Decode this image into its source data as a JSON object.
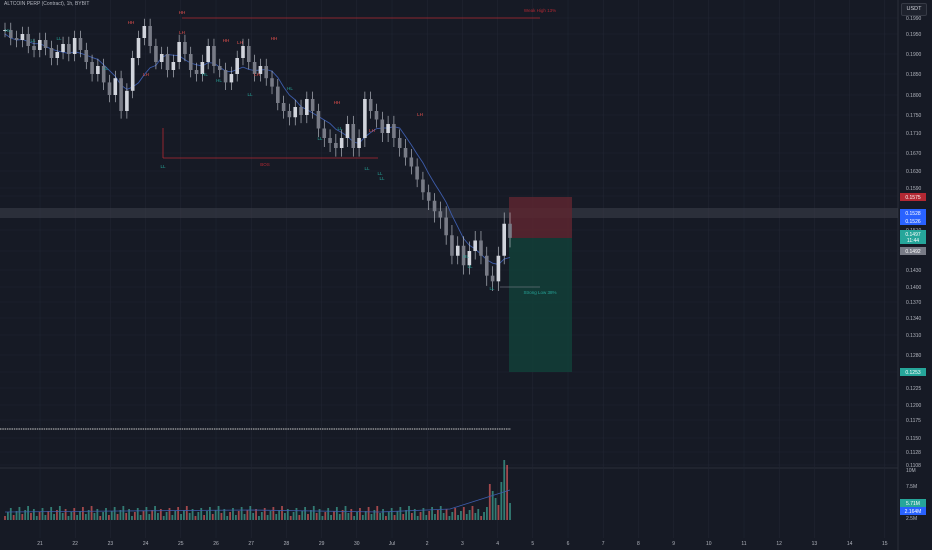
{
  "symbol_header": "ALTCOIN PERP (Contract), 1h, BYBIT",
  "currency": "USDT",
  "colors": {
    "background": "#161a25",
    "grid": "#212533",
    "up": "#d1d4dc",
    "down": "#d1d4dc",
    "ma": "#3d5caa",
    "resistance": "#b22833",
    "support_label": "#26a69a",
    "high_label": "#ef5350",
    "risk_zone": "#5c2630",
    "reward_zone": "#123f38",
    "current_band": "#3a3e4a"
  },
  "chart_data": {
    "type": "candlestick",
    "x_ticks": [
      "21",
      "22",
      "23",
      "24",
      "25",
      "26",
      "27",
      "28",
      "29",
      "30",
      "Jul",
      "2",
      "3",
      "4",
      "5",
      "6",
      "7",
      "8",
      "9",
      "10",
      "11",
      "12",
      "13",
      "14",
      "15"
    ],
    "y_ticks": [
      "0.1990",
      "0.1950",
      "0.1900",
      "0.1850",
      "0.1800",
      "0.1750",
      "0.1710",
      "0.1670",
      "0.1630",
      "0.1590",
      "0.1550",
      "0.1510",
      "0.1470",
      "0.1430",
      "0.1400",
      "0.1370",
      "0.1340",
      "0.1310",
      "0.1280",
      "0.1250",
      "0.1225",
      "0.1200",
      "0.1175",
      "0.1150",
      "0.1128",
      "0.1108"
    ],
    "ylim": [
      0.11,
      0.199
    ],
    "price_path": [
      0.196,
      0.194,
      0.1935,
      0.195,
      0.192,
      0.191,
      0.1935,
      0.1915,
      0.189,
      0.1905,
      0.1925,
      0.19,
      0.194,
      0.191,
      0.188,
      0.185,
      0.187,
      0.183,
      0.18,
      0.184,
      0.176,
      0.181,
      0.189,
      0.194,
      0.197,
      0.192,
      0.188,
      0.19,
      0.186,
      0.188,
      0.193,
      0.19,
      0.186,
      0.185,
      0.188,
      0.192,
      0.187,
      0.186,
      0.183,
      0.185,
      0.189,
      0.192,
      0.188,
      0.185,
      0.187,
      0.184,
      0.182,
      0.178,
      0.176,
      0.1745,
      0.177,
      0.175,
      0.179,
      0.176,
      0.172,
      0.17,
      0.169,
      0.168,
      0.17,
      0.173,
      0.168,
      0.17,
      0.179,
      0.176,
      0.174,
      0.171,
      0.173,
      0.17,
      0.168,
      0.166,
      0.164,
      0.161,
      0.158,
      0.156,
      0.154,
      0.153,
      0.15,
      0.146,
      0.148,
      0.144,
      0.147,
      0.149,
      0.146,
      0.142,
      0.141,
      0.146,
      0.152,
      0.1495
    ],
    "last_price": "0.1495",
    "price_labels": [
      "0.1575",
      "0.1528",
      "0.1526",
      "0.1497",
      "11:44",
      "0.1492",
      "0.1253"
    ],
    "volume_ticks": [
      "10M",
      "7.5M",
      "5M",
      "2.5M"
    ],
    "volume_labels": [
      "5.71M",
      "2.164M"
    ],
    "annotations": [
      {
        "text": "HH"
      },
      {
        "text": "LH"
      },
      {
        "text": "HH"
      },
      {
        "text": "LH"
      },
      {
        "text": "HH"
      },
      {
        "text": "LH"
      },
      {
        "text": "LH"
      },
      {
        "text": "HH"
      },
      {
        "text": "HH"
      },
      {
        "text": "LH"
      },
      {
        "text": "LH"
      },
      {
        "text": "HL"
      },
      {
        "text": "LL"
      },
      {
        "text": "LL"
      },
      {
        "text": "HL"
      },
      {
        "text": "LL"
      },
      {
        "text": "HL"
      },
      {
        "text": "HL"
      },
      {
        "text": "LL"
      },
      {
        "text": "LL"
      },
      {
        "text": "LL"
      },
      {
        "text": "LL"
      },
      {
        "text": "LL"
      },
      {
        "text": "HL"
      },
      {
        "text": "LL"
      },
      {
        "text": "LL"
      },
      {
        "text": "LL"
      },
      {
        "text": "LL"
      },
      {
        "text": "BOS"
      },
      {
        "text": "Weak High 13%"
      },
      {
        "text": "Strong Low 38%"
      }
    ],
    "grid": true
  }
}
